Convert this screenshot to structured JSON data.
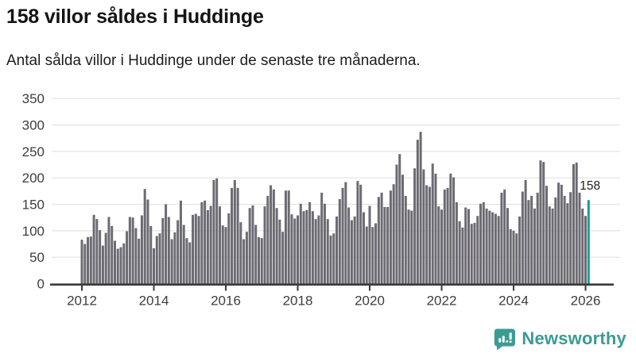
{
  "header": {
    "title": "158 villor såldes i Huddinge",
    "subtitle": "Antal sålda villor i Huddinge under de senaste tre månaderna."
  },
  "chart_data": {
    "type": "bar",
    "title": "158 villor såldes i Huddinge",
    "x_start": "2012-01",
    "x_end": "2026-02",
    "x_tick_labels": [
      "2012",
      "2014",
      "2016",
      "2018",
      "2020",
      "2022",
      "2024",
      "2026"
    ],
    "y_ticks": [
      0,
      50,
      100,
      150,
      200,
      250,
      300,
      350
    ],
    "ylim": [
      0,
      350
    ],
    "grid": true,
    "legend": "none",
    "bar_color": "#6c6b72",
    "highlight_color": "#11a098",
    "axis_color": "#3a3a3a",
    "grid_color": "#e3e3e3",
    "tick_label_color": "#3d3d3d",
    "annotation": {
      "text": "158",
      "applies_to": "last-bar"
    },
    "values": [
      83,
      75,
      88,
      89,
      130,
      122,
      101,
      72,
      96,
      126,
      109,
      81,
      66,
      69,
      76,
      99,
      126,
      125,
      105,
      85,
      129,
      179,
      159,
      109,
      67,
      90,
      95,
      124,
      150,
      126,
      84,
      97,
      120,
      157,
      111,
      86,
      78,
      130,
      132,
      128,
      154,
      157,
      139,
      147,
      196,
      199,
      146,
      110,
      107,
      133,
      181,
      196,
      181,
      116,
      84,
      98,
      143,
      148,
      111,
      88,
      86,
      146,
      166,
      186,
      178,
      143,
      121,
      98,
      176,
      176,
      131,
      123,
      129,
      151,
      137,
      139,
      154,
      137,
      122,
      129,
      172,
      151,
      122,
      91,
      95,
      127,
      160,
      181,
      192,
      144,
      120,
      127,
      194,
      187,
      135,
      108,
      147,
      107,
      114,
      164,
      172,
      145,
      145,
      176,
      188,
      225,
      245,
      206,
      166,
      140,
      138,
      218,
      272,
      287,
      216,
      186,
      183,
      227,
      208,
      146,
      140,
      178,
      181,
      208,
      201,
      154,
      118,
      106,
      144,
      141,
      113,
      115,
      128,
      151,
      154,
      142,
      138,
      135,
      132,
      128,
      172,
      178,
      143,
      103,
      100,
      95,
      127,
      174,
      196,
      158,
      166,
      142,
      172,
      233,
      230,
      185,
      146,
      142,
      163,
      191,
      187,
      166,
      152,
      173,
      226,
      229,
      172,
      142,
      128,
      158
    ]
  },
  "footer": {
    "brand": "Newsworthy",
    "brand_color": "#3a9c93",
    "logo_icon": "bar-chart-speech-bubble"
  }
}
